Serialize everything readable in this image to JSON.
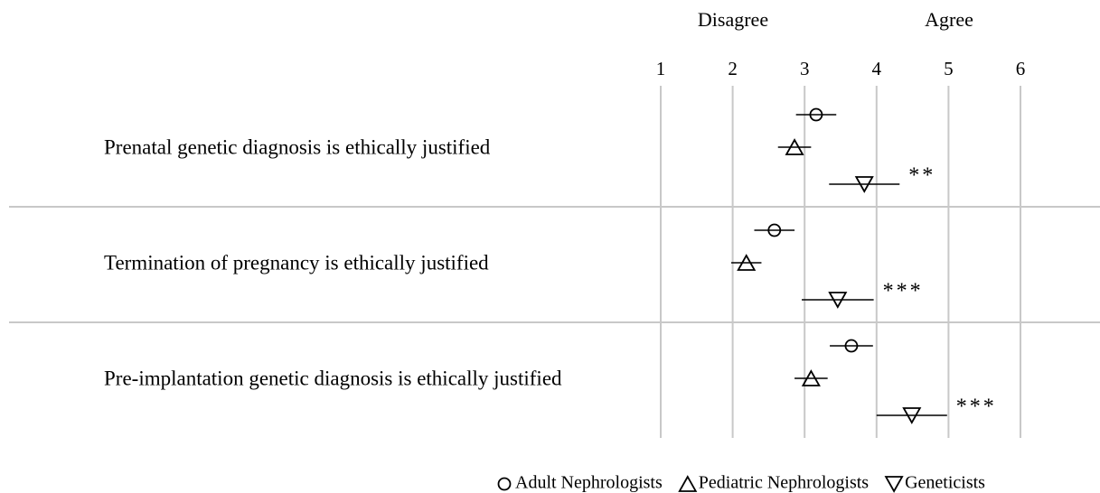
{
  "chart_data": {
    "type": "dot_errorbar",
    "scale_labels": [
      "Disagree",
      "Agree"
    ],
    "categories": [
      "Prenatal genetic diagnosis is ethically justified",
      "Termination of pregnancy is ethically justified",
      "Pre-implantation genetic diagnosis is ethically justified"
    ],
    "series": [
      {
        "name": "Adult Nephrologists",
        "marker": "circle",
        "color": "#000000",
        "values": [
          3.16,
          2.58,
          3.65
        ],
        "errors": [
          0.28,
          0.28,
          0.3
        ]
      },
      {
        "name": "Pediatric Nephrologists",
        "marker": "triangle-up",
        "color": "#000000",
        "values": [
          2.86,
          2.19,
          3.09
        ],
        "errors": [
          0.23,
          0.21,
          0.23
        ]
      },
      {
        "name": "Geneticists",
        "marker": "triangle-down",
        "color": "#000000",
        "values": [
          3.83,
          3.46,
          4.49
        ],
        "errors": [
          0.49,
          0.5,
          0.49
        ]
      }
    ],
    "annotations": [
      "**",
      "***",
      "***"
    ],
    "xlim": [
      1,
      6
    ],
    "xticks": [
      1,
      2,
      3,
      4,
      5,
      6
    ],
    "grid": true
  }
}
